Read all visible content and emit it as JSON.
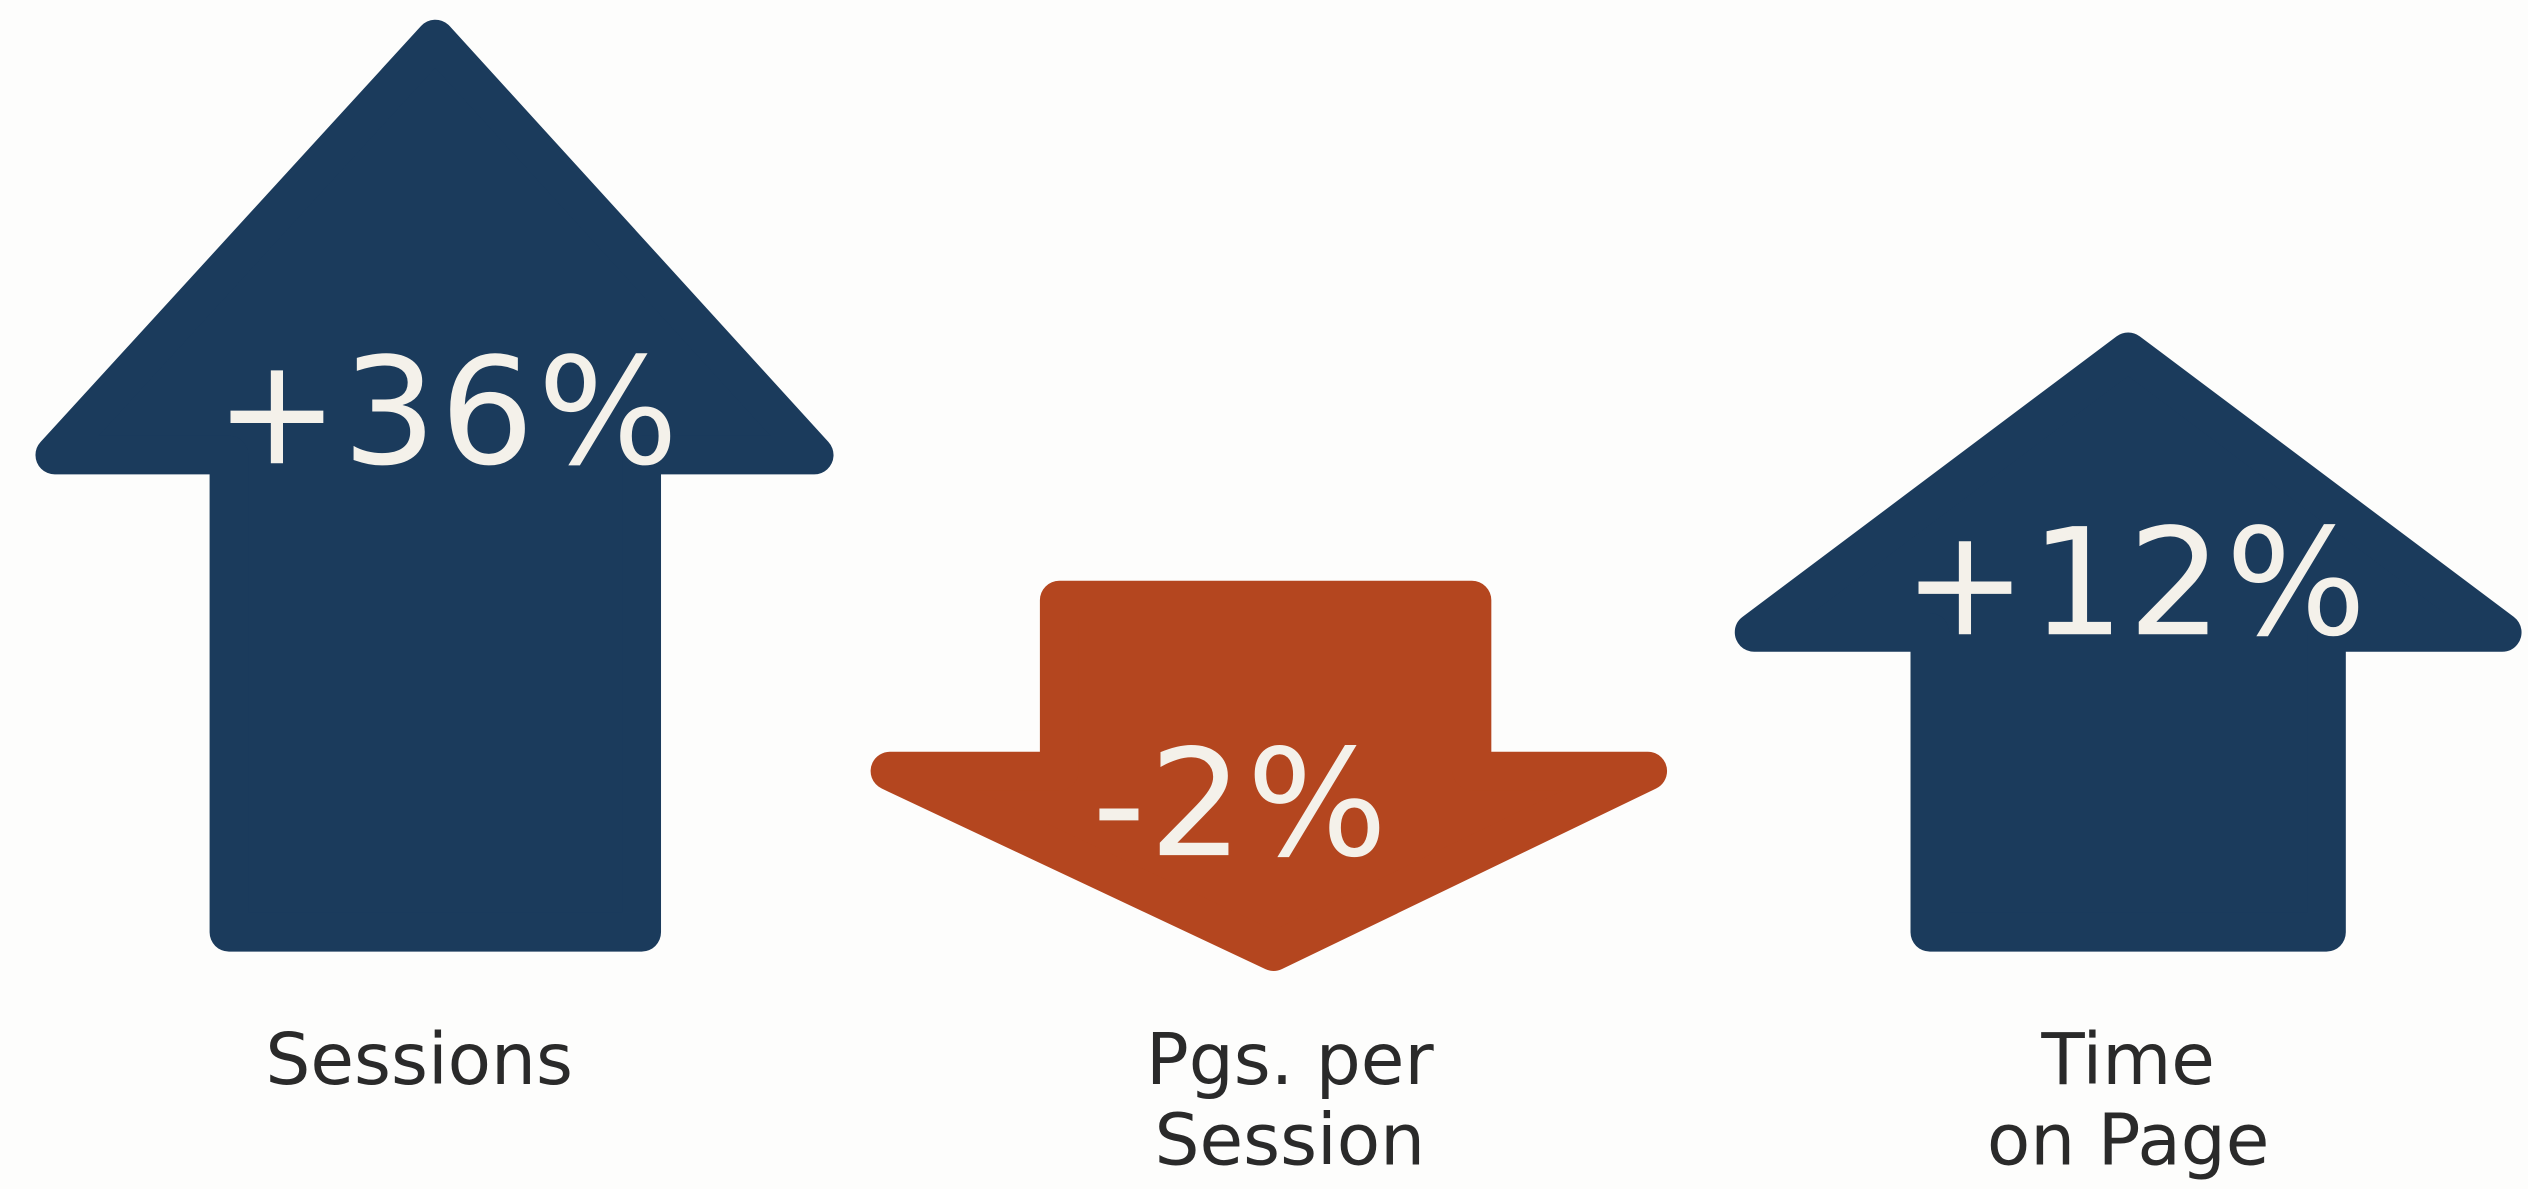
{
  "items": [
    {
      "change": "+36%",
      "label": [
        "Sessions"
      ]
    },
    {
      "change": "-2%",
      "label": [
        "Pgs. per",
        "Session"
      ]
    },
    {
      "change": "+12%",
      "label": [
        "Time",
        "on Page"
      ]
    }
  ]
}
